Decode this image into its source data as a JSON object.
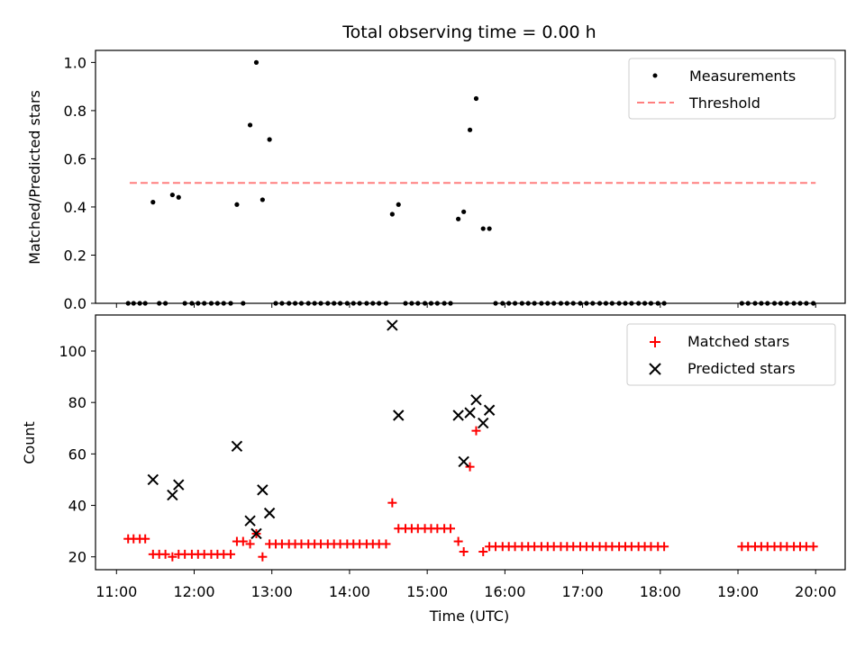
{
  "chart_data": [
    {
      "type": "scatter",
      "title": "Total observing time = 0.00 h",
      "ylabel": "Matched/Predicted stars",
      "ylim": [
        0,
        1.05
      ],
      "yticks": [
        0.0,
        0.2,
        0.4,
        0.6,
        0.8,
        1.0
      ],
      "ytick_labels": [
        "0.0",
        "0.2",
        "0.4",
        "0.6",
        "0.8",
        "1.0"
      ],
      "xlim_hours": [
        10.73,
        20.38
      ],
      "legend_position": "top-right",
      "threshold": {
        "name": "Threshold",
        "value": 0.5,
        "x_start": 11.17,
        "x_end": 20.0,
        "color": "#ff7f7f"
      },
      "series": [
        {
          "name": "Measurements",
          "color": "#000000",
          "marker": "dot",
          "points": [
            [
              11.15,
              0
            ],
            [
              11.22,
              0
            ],
            [
              11.3,
              0
            ],
            [
              11.37,
              0
            ],
            [
              11.47,
              0.42
            ],
            [
              11.55,
              0
            ],
            [
              11.63,
              0
            ],
            [
              11.72,
              0.45
            ],
            [
              11.8,
              0.44
            ],
            [
              11.88,
              0
            ],
            [
              11.97,
              0
            ],
            [
              12.05,
              0
            ],
            [
              12.13,
              0
            ],
            [
              12.22,
              0
            ],
            [
              12.3,
              0
            ],
            [
              12.38,
              0
            ],
            [
              12.47,
              0
            ],
            [
              12.55,
              0.41
            ],
            [
              12.63,
              0
            ],
            [
              12.72,
              0.74
            ],
            [
              12.8,
              1.0
            ],
            [
              12.88,
              0.43
            ],
            [
              12.97,
              0.68
            ],
            [
              13.05,
              0
            ],
            [
              13.13,
              0
            ],
            [
              13.22,
              0
            ],
            [
              13.3,
              0
            ],
            [
              13.38,
              0
            ],
            [
              13.47,
              0
            ],
            [
              13.55,
              0
            ],
            [
              13.63,
              0
            ],
            [
              13.72,
              0
            ],
            [
              13.8,
              0
            ],
            [
              13.88,
              0
            ],
            [
              13.97,
              0
            ],
            [
              14.05,
              0
            ],
            [
              14.13,
              0
            ],
            [
              14.22,
              0
            ],
            [
              14.3,
              0
            ],
            [
              14.38,
              0
            ],
            [
              14.47,
              0
            ],
            [
              14.55,
              0.37
            ],
            [
              14.63,
              0.41
            ],
            [
              14.72,
              0
            ],
            [
              14.8,
              0
            ],
            [
              14.88,
              0
            ],
            [
              14.97,
              0
            ],
            [
              15.05,
              0
            ],
            [
              15.13,
              0
            ],
            [
              15.22,
              0
            ],
            [
              15.3,
              0
            ],
            [
              15.4,
              0.35
            ],
            [
              15.47,
              0.38
            ],
            [
              15.55,
              0.72
            ],
            [
              15.63,
              0.85
            ],
            [
              15.72,
              0.31
            ],
            [
              15.8,
              0.31
            ],
            [
              15.88,
              0
            ],
            [
              15.97,
              0
            ],
            [
              16.05,
              0
            ],
            [
              16.13,
              0
            ],
            [
              16.22,
              0
            ],
            [
              16.3,
              0
            ],
            [
              16.38,
              0
            ],
            [
              16.47,
              0
            ],
            [
              16.55,
              0
            ],
            [
              16.63,
              0
            ],
            [
              16.72,
              0
            ],
            [
              16.8,
              0
            ],
            [
              16.88,
              0
            ],
            [
              16.97,
              0
            ],
            [
              17.05,
              0
            ],
            [
              17.13,
              0
            ],
            [
              17.22,
              0
            ],
            [
              17.3,
              0
            ],
            [
              17.38,
              0
            ],
            [
              17.47,
              0
            ],
            [
              17.55,
              0
            ],
            [
              17.63,
              0
            ],
            [
              17.72,
              0
            ],
            [
              17.8,
              0
            ],
            [
              17.88,
              0
            ],
            [
              17.97,
              0
            ],
            [
              18.05,
              0
            ],
            [
              19.05,
              0
            ],
            [
              19.13,
              0
            ],
            [
              19.22,
              0
            ],
            [
              19.3,
              0
            ],
            [
              19.38,
              0
            ],
            [
              19.47,
              0
            ],
            [
              19.55,
              0
            ],
            [
              19.63,
              0
            ],
            [
              19.72,
              0
            ],
            [
              19.8,
              0
            ],
            [
              19.88,
              0
            ],
            [
              19.97,
              0
            ]
          ]
        }
      ]
    },
    {
      "type": "scatter",
      "xlabel": "Time (UTC)",
      "ylabel": "Count",
      "ylim": [
        15,
        114
      ],
      "yticks": [
        20,
        40,
        60,
        80,
        100
      ],
      "ytick_labels": [
        "20",
        "40",
        "60",
        "80",
        "100"
      ],
      "xlim_hours": [
        10.73,
        20.38
      ],
      "xticks": [
        11,
        12,
        13,
        14,
        15,
        16,
        17,
        18,
        19,
        20
      ],
      "xtick_labels": [
        "11:00",
        "12:00",
        "13:00",
        "14:00",
        "15:00",
        "16:00",
        "17:00",
        "18:00",
        "19:00",
        "20:00"
      ],
      "legend_position": "top-right",
      "series": [
        {
          "name": "Matched stars",
          "color": "#ff0000",
          "marker": "plus",
          "points": [
            [
              11.15,
              27
            ],
            [
              11.22,
              27
            ],
            [
              11.3,
              27
            ],
            [
              11.37,
              27
            ],
            [
              11.47,
              21
            ],
            [
              11.55,
              21
            ],
            [
              11.63,
              21
            ],
            [
              11.72,
              20
            ],
            [
              11.8,
              21
            ],
            [
              11.88,
              21
            ],
            [
              11.97,
              21
            ],
            [
              12.05,
              21
            ],
            [
              12.13,
              21
            ],
            [
              12.22,
              21
            ],
            [
              12.3,
              21
            ],
            [
              12.38,
              21
            ],
            [
              12.47,
              21
            ],
            [
              12.55,
              26
            ],
            [
              12.63,
              26
            ],
            [
              12.72,
              25
            ],
            [
              12.8,
              29
            ],
            [
              12.88,
              20
            ],
            [
              12.97,
              25
            ],
            [
              13.05,
              25
            ],
            [
              13.13,
              25
            ],
            [
              13.22,
              25
            ],
            [
              13.3,
              25
            ],
            [
              13.38,
              25
            ],
            [
              13.47,
              25
            ],
            [
              13.55,
              25
            ],
            [
              13.63,
              25
            ],
            [
              13.72,
              25
            ],
            [
              13.8,
              25
            ],
            [
              13.88,
              25
            ],
            [
              13.97,
              25
            ],
            [
              14.05,
              25
            ],
            [
              14.13,
              25
            ],
            [
              14.22,
              25
            ],
            [
              14.3,
              25
            ],
            [
              14.38,
              25
            ],
            [
              14.47,
              25
            ],
            [
              14.55,
              41
            ],
            [
              14.63,
              31
            ],
            [
              14.72,
              31
            ],
            [
              14.8,
              31
            ],
            [
              14.88,
              31
            ],
            [
              14.97,
              31
            ],
            [
              15.05,
              31
            ],
            [
              15.13,
              31
            ],
            [
              15.22,
              31
            ],
            [
              15.3,
              31
            ],
            [
              15.4,
              26
            ],
            [
              15.47,
              22
            ],
            [
              15.55,
              55
            ],
            [
              15.63,
              69
            ],
            [
              15.72,
              22
            ],
            [
              15.8,
              24
            ],
            [
              15.88,
              24
            ],
            [
              15.97,
              24
            ],
            [
              16.05,
              24
            ],
            [
              16.13,
              24
            ],
            [
              16.22,
              24
            ],
            [
              16.3,
              24
            ],
            [
              16.38,
              24
            ],
            [
              16.47,
              24
            ],
            [
              16.55,
              24
            ],
            [
              16.63,
              24
            ],
            [
              16.72,
              24
            ],
            [
              16.8,
              24
            ],
            [
              16.88,
              24
            ],
            [
              16.97,
              24
            ],
            [
              17.05,
              24
            ],
            [
              17.13,
              24
            ],
            [
              17.22,
              24
            ],
            [
              17.3,
              24
            ],
            [
              17.38,
              24
            ],
            [
              17.47,
              24
            ],
            [
              17.55,
              24
            ],
            [
              17.63,
              24
            ],
            [
              17.72,
              24
            ],
            [
              17.8,
              24
            ],
            [
              17.88,
              24
            ],
            [
              17.97,
              24
            ],
            [
              18.05,
              24
            ],
            [
              19.05,
              24
            ],
            [
              19.13,
              24
            ],
            [
              19.22,
              24
            ],
            [
              19.3,
              24
            ],
            [
              19.38,
              24
            ],
            [
              19.47,
              24
            ],
            [
              19.55,
              24
            ],
            [
              19.63,
              24
            ],
            [
              19.72,
              24
            ],
            [
              19.8,
              24
            ],
            [
              19.88,
              24
            ],
            [
              19.97,
              24
            ]
          ]
        },
        {
          "name": "Predicted stars",
          "color": "#000000",
          "marker": "x",
          "points": [
            [
              11.47,
              50
            ],
            [
              11.72,
              44
            ],
            [
              11.8,
              48
            ],
            [
              12.55,
              63
            ],
            [
              12.72,
              34
            ],
            [
              12.8,
              29
            ],
            [
              12.88,
              46
            ],
            [
              12.97,
              37
            ],
            [
              14.55,
              110
            ],
            [
              14.63,
              75
            ],
            [
              15.4,
              75
            ],
            [
              15.47,
              57
            ],
            [
              15.55,
              76
            ],
            [
              15.63,
              81
            ],
            [
              15.72,
              72
            ],
            [
              15.8,
              77
            ]
          ]
        }
      ]
    }
  ]
}
